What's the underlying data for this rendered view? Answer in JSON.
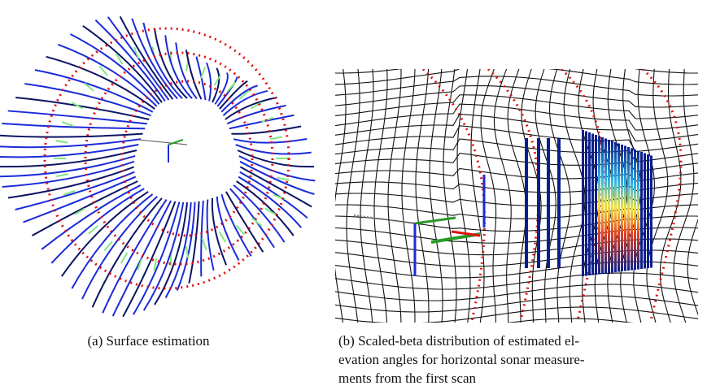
{
  "figures": [
    {
      "caption": "(a) Surface estimation"
    },
    {
      "caption_lines": [
        "(b) Scaled-beta distribution of estimated el-",
        "evation angles for horizontal sonar measure-",
        "ments from the first scan"
      ]
    }
  ]
}
